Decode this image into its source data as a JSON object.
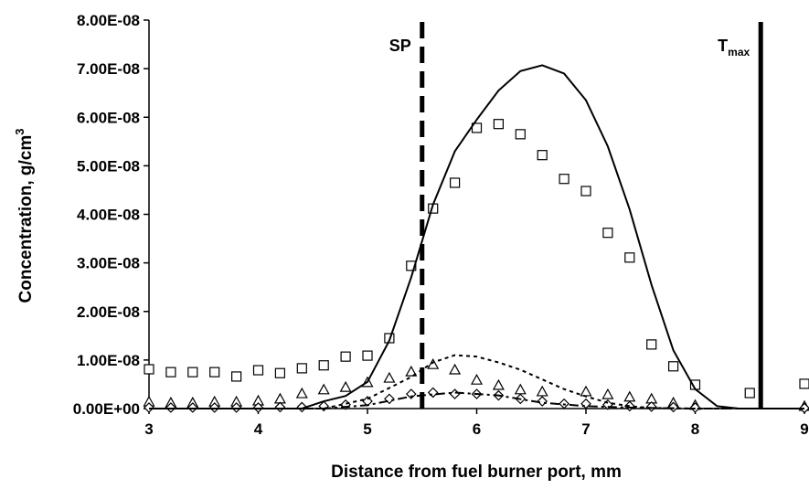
{
  "chart_data": {
    "type": "scatter",
    "xlabel": "Distance from fuel burner port, mm",
    "ylabel": {
      "text": "Concentration, g/cm",
      "superscript": "3"
    },
    "xlim": [
      3,
      9
    ],
    "xticks": [
      3,
      4,
      5,
      6,
      7,
      8,
      9
    ],
    "ylim": [
      0,
      8e-08
    ],
    "yticks": [
      {
        "value": 0,
        "label": "0.00E+00"
      },
      {
        "value": 1e-08,
        "label": "1.00E-08"
      },
      {
        "value": 2e-08,
        "label": "2.00E-08"
      },
      {
        "value": 3e-08,
        "label": "3.00E-08"
      },
      {
        "value": 4e-08,
        "label": "4.00E-08"
      },
      {
        "value": 5e-08,
        "label": "5.00E-08"
      },
      {
        "value": 6e-08,
        "label": "6.00E-08"
      },
      {
        "value": 7e-08,
        "label": "7.00E-08"
      },
      {
        "value": 8e-08,
        "label": "8.00E-08"
      }
    ],
    "series": [
      {
        "mode": "markers",
        "marker": "square",
        "color": "#000000",
        "x": [
          3,
          3.2,
          3.4,
          3.6,
          3.8,
          4.0,
          4.2,
          4.4,
          4.6,
          4.8,
          5.0,
          5.2,
          5.4,
          5.6,
          5.8,
          6.0,
          6.2,
          6.4,
          6.6,
          6.8,
          7.0,
          7.2,
          7.4,
          7.6,
          7.8,
          8.0,
          8.5,
          9.0
        ],
        "values": [
          8.1e-09,
          7.5e-09,
          7.5e-09,
          7.5e-09,
          6.6e-09,
          7.9e-09,
          7.3e-09,
          8.3e-09,
          8.9e-09,
          1.07e-08,
          1.09e-08,
          1.45e-08,
          2.94e-08,
          4.12e-08,
          4.65e-08,
          5.78e-08,
          5.86e-08,
          5.65e-08,
          5.22e-08,
          4.73e-08,
          4.48e-08,
          3.62e-08,
          3.11e-08,
          1.32e-08,
          8.7e-09,
          4.9e-09,
          3.2e-09,
          5.1e-09
        ]
      },
      {
        "mode": "markers",
        "marker": "triangle",
        "color": "#000000",
        "x": [
          3,
          3.2,
          3.4,
          3.6,
          3.8,
          4.0,
          4.2,
          4.4,
          4.6,
          4.8,
          5.0,
          5.2,
          5.4,
          5.6,
          5.8,
          6.0,
          6.2,
          6.4,
          6.6,
          7.0,
          7.2,
          7.4,
          7.6,
          7.8,
          8.0,
          9.0
        ],
        "values": [
          1.3e-09,
          1.1e-09,
          1.1e-09,
          1.3e-09,
          1.3e-09,
          1.5e-09,
          1.9e-09,
          3e-09,
          3.8e-09,
          4.3e-09,
          5.3e-09,
          6.2e-09,
          7.5e-09,
          9e-09,
          7.9e-09,
          5.8e-09,
          4.7e-09,
          3.8e-09,
          3.4e-09,
          3.4e-09,
          2.8e-09,
          2.3e-09,
          1.9e-09,
          1.1e-09,
          6e-10,
          4e-10
        ]
      },
      {
        "mode": "markers",
        "marker": "diamond",
        "color": "#000000",
        "x": [
          3,
          3.2,
          3.4,
          3.6,
          3.8,
          4.0,
          4.2,
          4.4,
          4.6,
          4.8,
          5.0,
          5.2,
          5.4,
          5.6,
          5.8,
          6.0,
          6.2,
          6.4,
          6.6,
          6.8,
          7.0,
          7.2,
          7.4,
          7.6,
          7.8,
          8.0,
          9.0
        ],
        "values": [
          2e-10,
          2e-10,
          2e-10,
          2e-10,
          2e-10,
          2e-10,
          3e-10,
          3e-10,
          5e-10,
          8e-10,
          1.5e-09,
          2e-09,
          3e-09,
          3.3e-09,
          3e-09,
          3e-09,
          2.7e-09,
          2e-09,
          1.5e-09,
          1e-09,
          1e-09,
          8e-10,
          5e-10,
          4e-10,
          3e-10,
          2e-10,
          1e-10
        ]
      },
      {
        "mode": "lines",
        "dash": "solid",
        "color": "#000000",
        "x": [
          3,
          4.4,
          4.6,
          4.8,
          5.0,
          5.2,
          5.4,
          5.6,
          5.8,
          6.0,
          6.2,
          6.4,
          6.6,
          6.8,
          7.0,
          7.2,
          7.4,
          7.6,
          7.8,
          8.0,
          8.2,
          8.4,
          9.0
        ],
        "values": [
          0,
          0,
          1.5e-09,
          2.6e-09,
          5.5e-09,
          1.4e-08,
          2.7e-08,
          4.2e-08,
          5.3e-08,
          5.95e-08,
          6.55e-08,
          6.95e-08,
          7.07e-08,
          6.9e-08,
          6.35e-08,
          5.4e-08,
          4.1e-08,
          2.55e-08,
          1.2e-08,
          4e-09,
          5e-10,
          0,
          0
        ]
      },
      {
        "mode": "lines",
        "dash": "dotted",
        "color": "#000000",
        "x": [
          3,
          4.6,
          5.0,
          5.4,
          5.6,
          5.8,
          6.0,
          6.2,
          6.4,
          6.6,
          6.8,
          7.0,
          7.2,
          7.4,
          7.6,
          8.0,
          9.0
        ],
        "values": [
          0,
          0,
          2e-09,
          6.5e-09,
          9.5e-09,
          1.1e-08,
          1.07e-08,
          9.5e-09,
          8e-09,
          6e-09,
          4e-09,
          2.5e-09,
          1.2e-09,
          5e-10,
          1e-10,
          0,
          0
        ]
      },
      {
        "mode": "lines",
        "dash": "dashdot",
        "color": "#000000",
        "x": [
          3,
          4.6,
          5.0,
          5.4,
          5.8,
          6.2,
          6.6,
          7.0,
          7.4,
          8.0,
          9.0
        ],
        "values": [
          0,
          0,
          7e-10,
          2.5e-09,
          3.3e-09,
          2.7e-09,
          1.2e-09,
          5e-10,
          2e-10,
          0,
          0
        ]
      }
    ],
    "annotations": [
      {
        "text": "SP",
        "x": 5.5,
        "style": "dashed"
      },
      {
        "text": "T",
        "subscript": "max",
        "x": 8.6,
        "style": "solid"
      }
    ]
  }
}
